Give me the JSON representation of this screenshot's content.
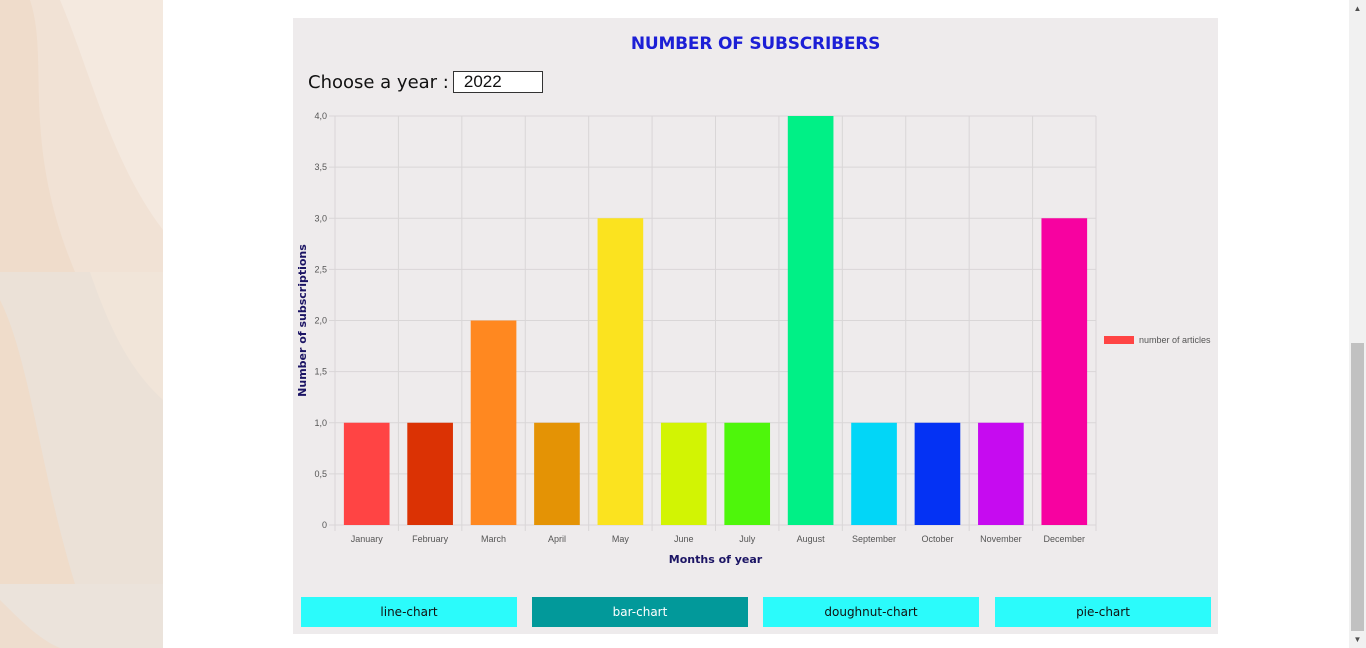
{
  "header": {
    "title": "NUMBER OF SUBSCRIBERS"
  },
  "year_selector": {
    "label": "Choose a year :",
    "value": "2022"
  },
  "buttons": [
    {
      "label": "line-chart",
      "active": false
    },
    {
      "label": "bar-chart",
      "active": true
    },
    {
      "label": "doughnut-chart",
      "active": false
    },
    {
      "label": "pie-chart",
      "active": false
    }
  ],
  "colors": {
    "title": "#1c1fd6",
    "button_default": "#2bfbfb",
    "button_active": "#02999a",
    "axis_title": "#1b1464"
  },
  "chart_data": {
    "type": "bar",
    "title": "NUMBER OF SUBSCRIBERS",
    "xlabel": "Months of year",
    "ylabel": "Number of subscriptions",
    "categories": [
      "January",
      "February",
      "March",
      "April",
      "May",
      "June",
      "July",
      "August",
      "September",
      "October",
      "November",
      "December"
    ],
    "series": [
      {
        "name": "number of articles",
        "values": [
          1,
          1,
          2,
          1,
          3,
          1,
          1,
          4,
          1,
          1,
          1,
          3
        ],
        "colors": [
          "#ff4444",
          "#db3204",
          "#ff8820",
          "#e49305",
          "#fbe31f",
          "#d2f403",
          "#4ef60b",
          "#00f086",
          "#02d6f7",
          "#0432f4",
          "#c60bf0",
          "#f702a0"
        ]
      }
    ],
    "ylim": [
      0,
      4
    ],
    "yticks": [
      "0",
      "0,5",
      "1,0",
      "1,5",
      "2,0",
      "2,5",
      "3,0",
      "3,5",
      "4,0"
    ],
    "grid": true,
    "legend": "right"
  }
}
